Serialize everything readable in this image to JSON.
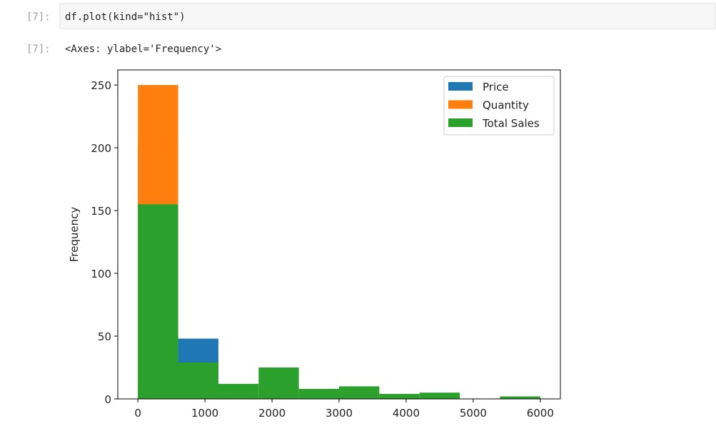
{
  "notebook": {
    "input_prompt": "[7]:",
    "code": "df.plot(kind=\"hist\")",
    "output_prompt": "[7]:",
    "output_text": "<Axes: ylabel='Frequency'>"
  },
  "chart_data": {
    "type": "histogram",
    "ylabel": "Frequency",
    "bins": [
      0,
      600,
      1200,
      1800,
      2400,
      3000,
      3600,
      4200,
      4800,
      5400,
      6000
    ],
    "series": [
      {
        "name": "Price",
        "color": "#1f77b4",
        "values": [
          202,
          48,
          0,
          0,
          0,
          0,
          0,
          0,
          0,
          0
        ]
      },
      {
        "name": "Quantity",
        "color": "#ff7f0e",
        "values": [
          250,
          0,
          0,
          0,
          0,
          0,
          0,
          0,
          0,
          0
        ]
      },
      {
        "name": "Total Sales",
        "color": "#2ca02c",
        "values": [
          155,
          29,
          12,
          25,
          8,
          10,
          4,
          5,
          0,
          2
        ]
      }
    ],
    "xlim": [
      -300,
      6300
    ],
    "xticks": [
      0,
      1000,
      2000,
      3000,
      4000,
      5000,
      6000
    ],
    "ylim": [
      0,
      262
    ],
    "yticks": [
      0,
      50,
      100,
      150,
      200,
      250
    ],
    "legend": "upper right"
  }
}
